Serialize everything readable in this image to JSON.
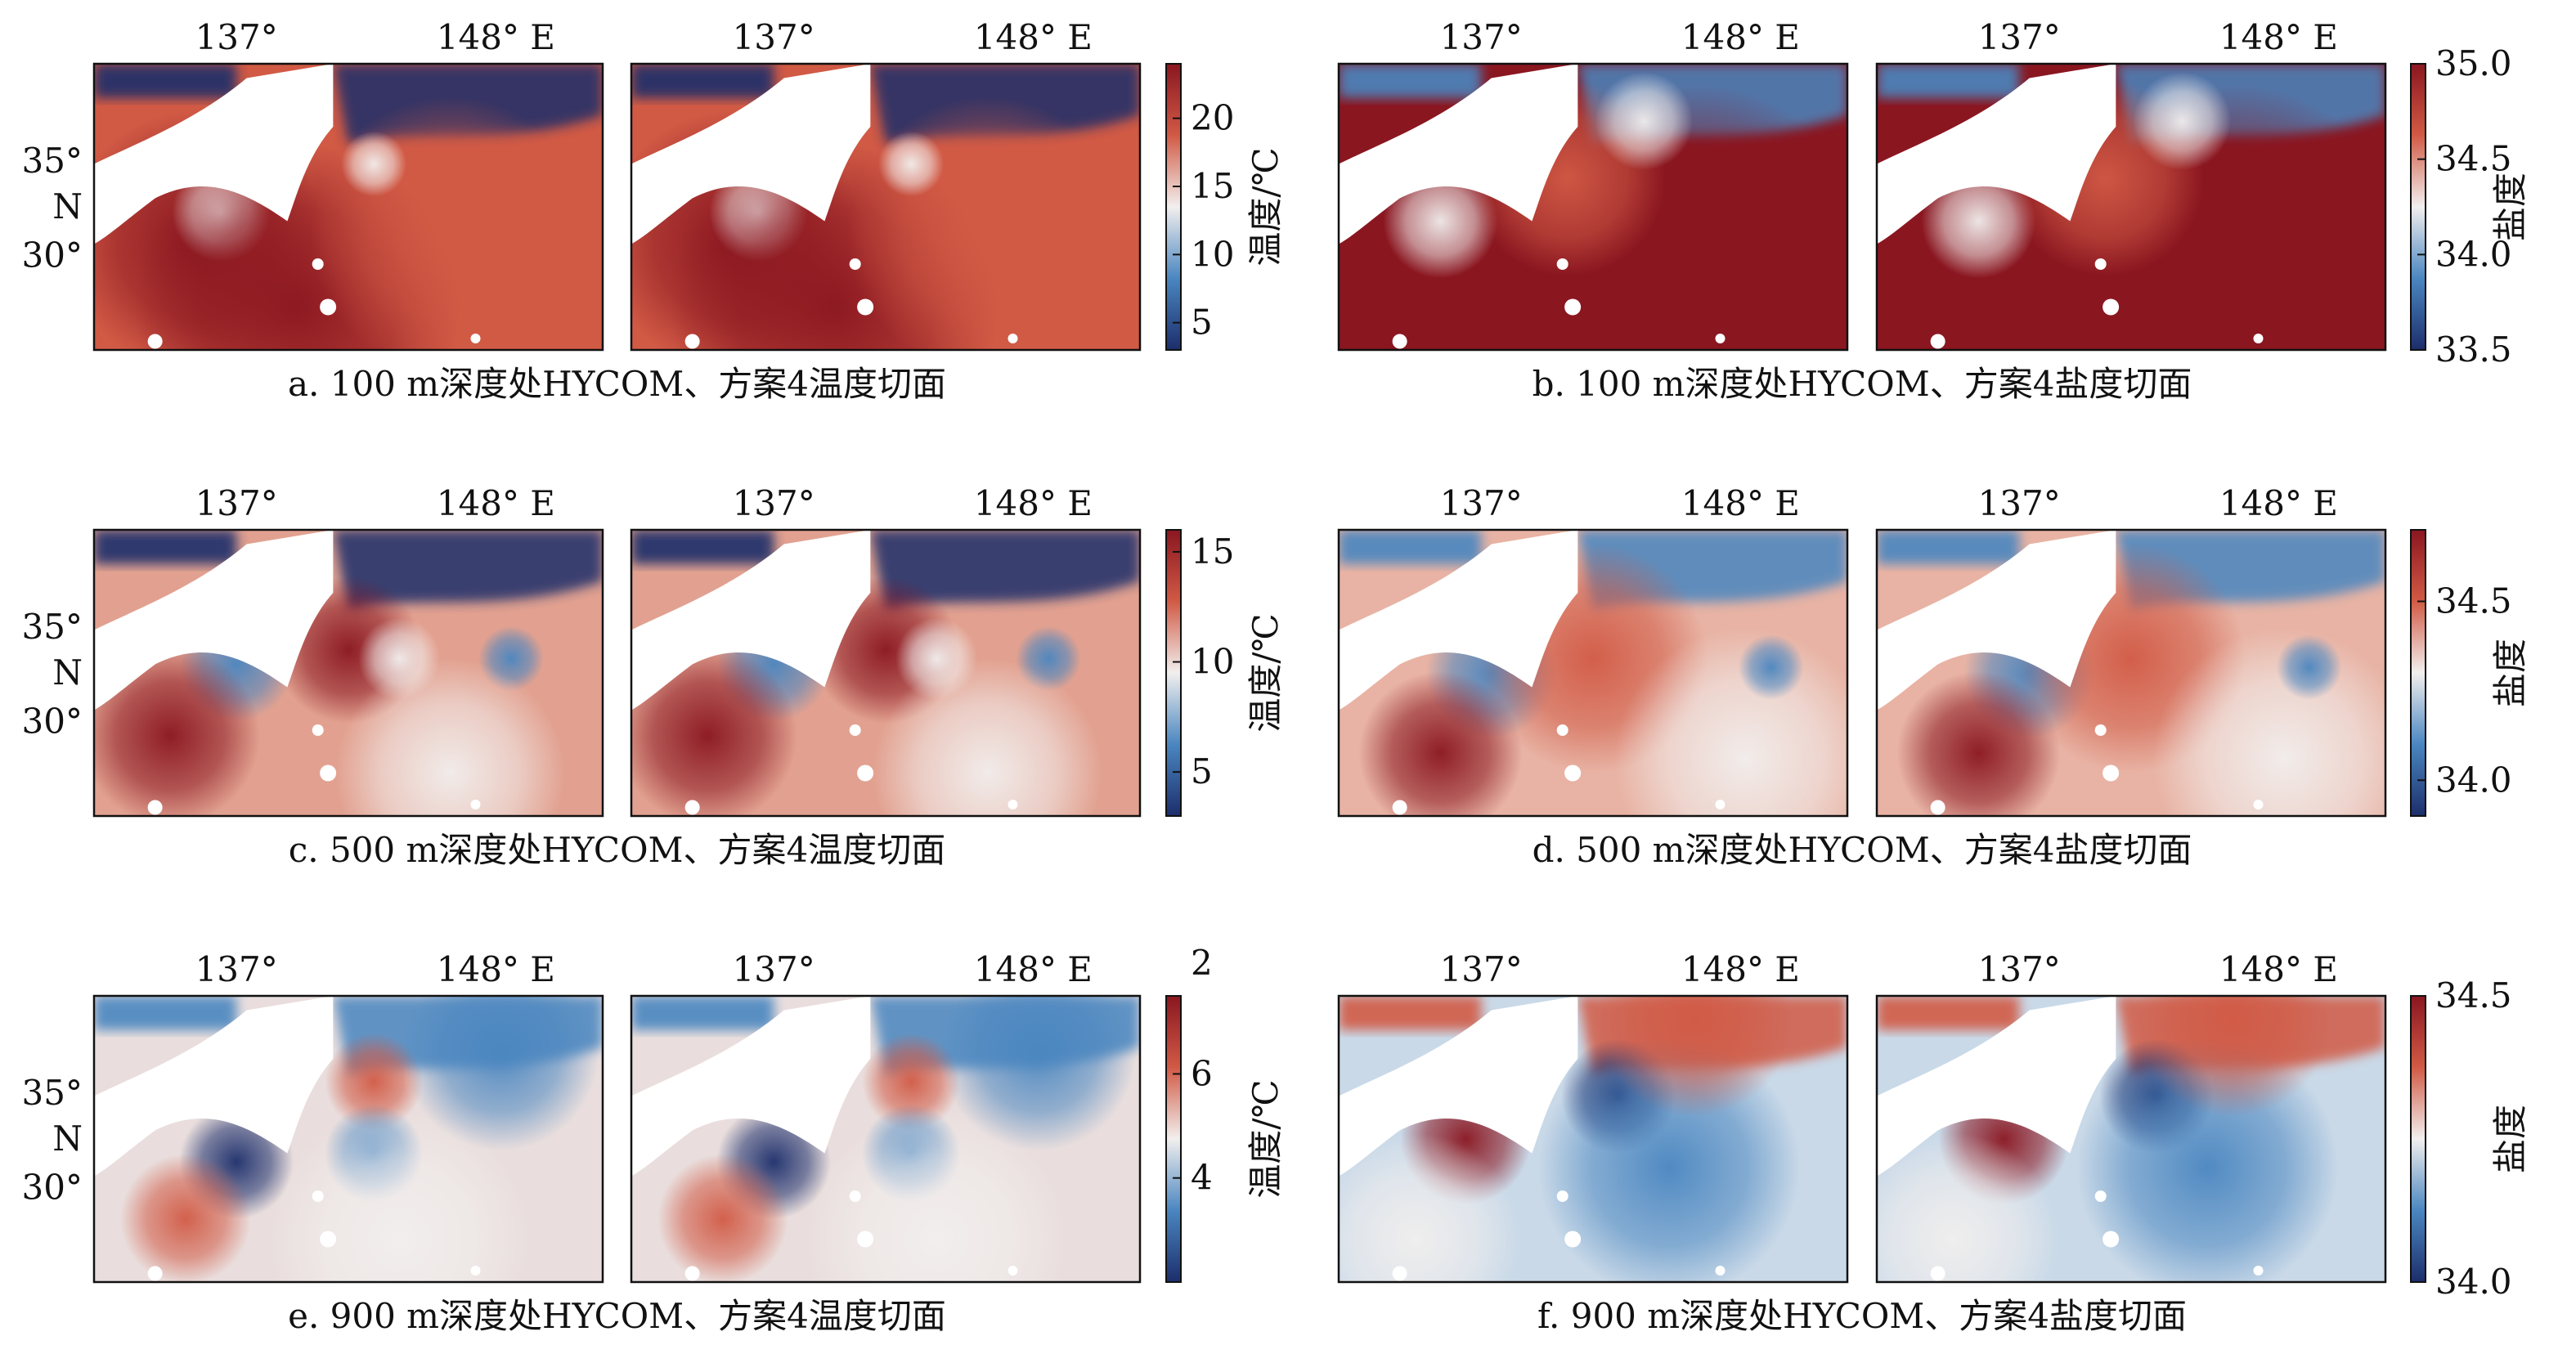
{
  "chart_data": {
    "type": "heatmap",
    "x_tick_labels": [
      "137°",
      "148° E"
    ],
    "y_tick_labels": [
      "35°",
      "N",
      "30°"
    ],
    "colormap": {
      "low": "#1c2e6b",
      "mid_low": "#4a86c0",
      "mid": "#f2efee",
      "mid_high": "#d15a45",
      "high": "#8a1620"
    },
    "rows": [
      {
        "temperature": {
          "caption": "a. 100 m深度处HYCOM、方案4温度切面",
          "colorbar_label": "温度/℃",
          "colorbar_ticks": [
            "20",
            "15",
            "10",
            "5"
          ],
          "colorbar_range": [
            3,
            24
          ]
        },
        "salinity": {
          "caption": "b. 100 m深度处HYCOM、方案4盐度切面",
          "colorbar_label": "盐度",
          "colorbar_ticks": [
            "35.0",
            "34.5",
            "34.0",
            "33.5"
          ],
          "colorbar_range": [
            33.5,
            35.0
          ]
        }
      },
      {
        "temperature": {
          "caption": "c. 500 m深度处HYCOM、方案4温度切面",
          "colorbar_label": "温度/℃",
          "colorbar_ticks": [
            "15",
            "10",
            "5"
          ],
          "colorbar_range": [
            3,
            16
          ]
        },
        "salinity": {
          "caption": "d. 500 m深度处HYCOM、方案4盐度切面",
          "colorbar_label": "盐度",
          "colorbar_ticks": [
            "34.5",
            "34.0"
          ],
          "colorbar_range": [
            33.9,
            34.7
          ]
        }
      },
      {
        "temperature": {
          "caption": "e. 900 m深度处HYCOM、方案4温度切面",
          "colorbar_label": "温度/℃",
          "colorbar_ticks": [
            "6",
            "4"
          ],
          "colorbar_extra_tick": "2",
          "colorbar_range": [
            2,
            7.5
          ]
        },
        "salinity": {
          "caption": "f. 900 m深度处HYCOM、方案4盐度切面",
          "colorbar_label": "盐度",
          "colorbar_ticks": [
            "34.5",
            "34.0"
          ],
          "colorbar_range": [
            34.0,
            34.5
          ]
        }
      }
    ]
  }
}
